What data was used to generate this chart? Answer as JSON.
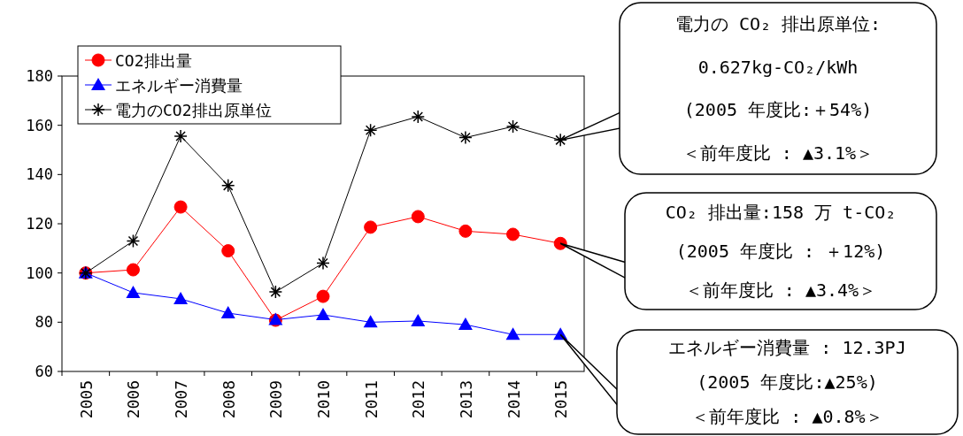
{
  "chart_data": {
    "type": "line",
    "categories": [
      "2005",
      "2006",
      "2007",
      "2008",
      "2009",
      "2010",
      "2011",
      "2012",
      "2013",
      "2014",
      "2015"
    ],
    "series": [
      {
        "name": "CO2排出量",
        "color": "#ff0000",
        "marker": "circle",
        "values": [
          100,
          101.3,
          126.8,
          109,
          80.8,
          90.5,
          118.6,
          122.9,
          117,
          115.7,
          112
        ]
      },
      {
        "name": "エネルギー消費量",
        "color": "#0000ff",
        "marker": "triangle",
        "values": [
          100,
          92,
          89.5,
          83.7,
          81,
          83,
          80,
          80.5,
          79,
          75,
          75
        ]
      },
      {
        "name": "電力のCO2排出原単位",
        "color": "#000000",
        "marker": "cross",
        "values": [
          100,
          113,
          155.6,
          135.5,
          92.3,
          104,
          158,
          163.5,
          155,
          159.5,
          154
        ]
      }
    ],
    "ylim": [
      60,
      180
    ],
    "yticks": [
      60,
      80,
      100,
      120,
      140,
      160,
      180
    ],
    "grid": false,
    "legend": "top left",
    "annotations": [
      "電力の CO₂ 排出原単位:\n0.627kg-CO₂/kWh\n(2005 年度比:＋54%)\n＜前年度比 : ▲3.1%＞",
      "CO₂ 排出量:158 万 t-CO₂\n(2005 年度比 : ＋12%)\n＜前年度比 : ▲3.4%＞",
      "エネルギー消費量 : 12.3PJ\n(2005 年度比:▲25%)\n＜前年度比 :  ▲0.8%＞"
    ]
  }
}
